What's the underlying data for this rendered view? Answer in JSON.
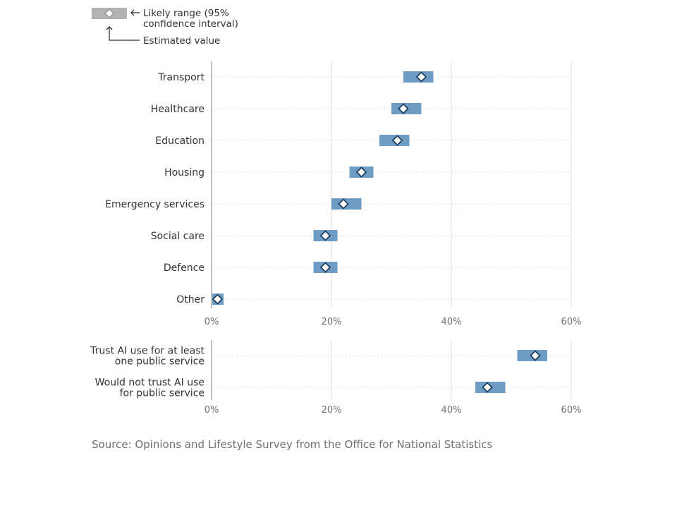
{
  "legend": {
    "range_label_line1": "Likely range (95%",
    "range_label_line2": "confidence interval)",
    "estimate_label": "Estimated value"
  },
  "source": "Source: Opinions and Lifestyle Survey from the Office for National Statistics",
  "colors": {
    "bar": "#6f9cc4",
    "marker_fill": "#ffffff",
    "marker_stroke": "#1f3f5f",
    "legend_bar": "#b3b3b3",
    "axis": "#c0c0c0",
    "grid": "#dddddd"
  },
  "chart_data": [
    {
      "type": "range-dot",
      "xlim": [
        0,
        60
      ],
      "x_ticks": [
        0,
        20,
        40,
        60
      ],
      "x_tick_labels": [
        "0%",
        "20%",
        "40%",
        "60%"
      ],
      "categories": [
        {
          "label": [
            "Transport"
          ],
          "estimate": 35,
          "low": 32,
          "high": 37
        },
        {
          "label": [
            "Healthcare"
          ],
          "estimate": 32,
          "low": 30,
          "high": 35
        },
        {
          "label": [
            "Education"
          ],
          "estimate": 31,
          "low": 28,
          "high": 33
        },
        {
          "label": [
            "Housing"
          ],
          "estimate": 25,
          "low": 23,
          "high": 27
        },
        {
          "label": [
            "Emergency services"
          ],
          "estimate": 22,
          "low": 20,
          "high": 25
        },
        {
          "label": [
            "Social care"
          ],
          "estimate": 19,
          "low": 17,
          "high": 21
        },
        {
          "label": [
            "Defence"
          ],
          "estimate": 19,
          "low": 17,
          "high": 21
        },
        {
          "label": [
            "Other"
          ],
          "estimate": 1,
          "low": 0,
          "high": 2
        }
      ]
    },
    {
      "type": "range-dot",
      "xlim": [
        0,
        60
      ],
      "x_ticks": [
        0,
        20,
        40,
        60
      ],
      "x_tick_labels": [
        "0%",
        "20%",
        "40%",
        "60%"
      ],
      "categories": [
        {
          "label": [
            "Trust AI use for at least",
            "one public service"
          ],
          "estimate": 54,
          "low": 51,
          "high": 56
        },
        {
          "label": [
            "Would not trust AI use",
            "for public service"
          ],
          "estimate": 46,
          "low": 44,
          "high": 49
        }
      ]
    }
  ]
}
